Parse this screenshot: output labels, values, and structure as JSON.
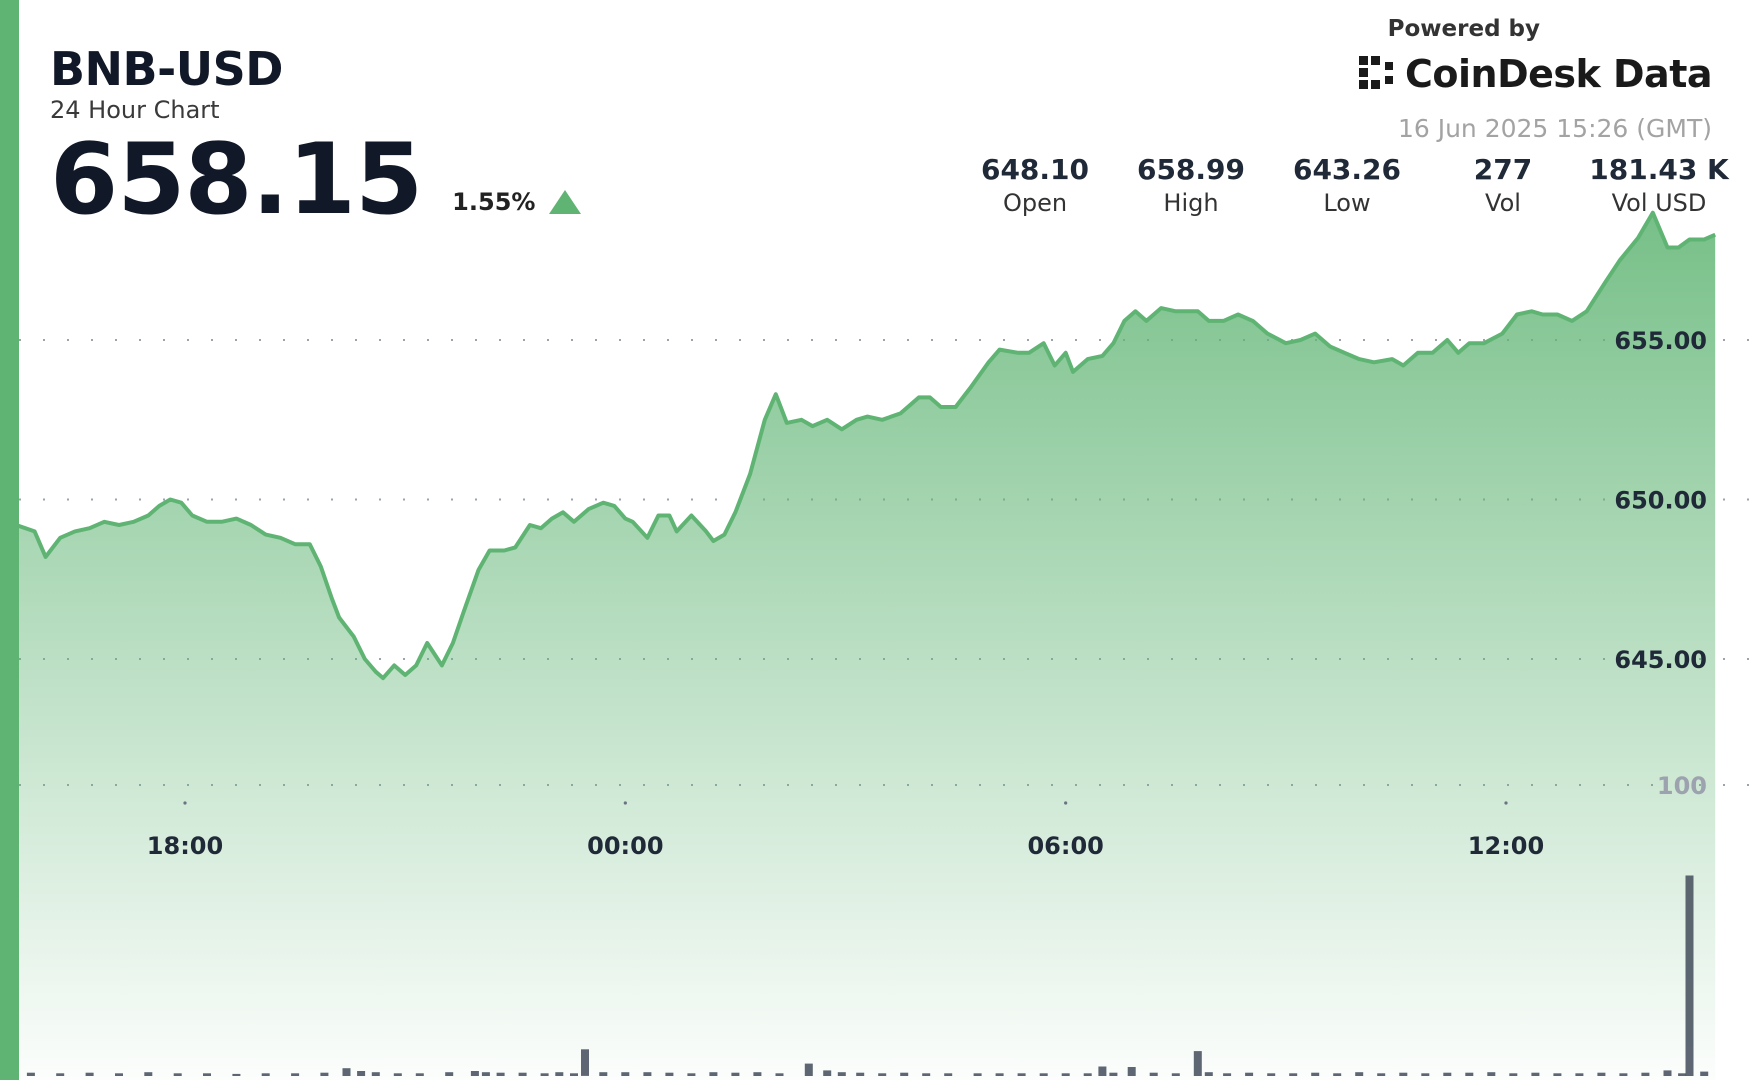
{
  "header": {
    "symbol": "BNB-USD",
    "subtitle": "24 Hour Chart",
    "price": "658.15",
    "change": "1.55%",
    "change_direction": "up"
  },
  "branding": {
    "powered_by": "Powered by",
    "name": "CoinDesk Data",
    "logo_icon": "coindesk-logo-icon"
  },
  "timestamp": "16 Jun 2025 15:26 (GMT)",
  "stats": [
    {
      "value": "648.10",
      "label": "Open"
    },
    {
      "value": "658.99",
      "label": "High"
    },
    {
      "value": "643.26",
      "label": "Low"
    },
    {
      "value": "277",
      "label": "Vol"
    },
    {
      "value": "181.43 K",
      "label": "Vol USD"
    }
  ],
  "colors": {
    "accent": "#5fb473",
    "line": "#5fb473",
    "area_top": "#5fb473",
    "volume": "#4b5563",
    "grid": "#9ca3af"
  },
  "chart_data": {
    "type": "area",
    "title": "BNB-USD",
    "ylim": [
      642.6,
      660.2
    ],
    "y_ticks": [
      645,
      650,
      655
    ],
    "y_tick_labels": [
      "645.00",
      "650.00",
      "655.00"
    ],
    "volume_tick_label": "100",
    "x_ticks": [
      18,
      24,
      30,
      36
    ],
    "x_tick_labels": [
      "18:00",
      "00:00",
      "06:00",
      "12:00"
    ],
    "grid": true,
    "series": [
      {
        "x": [
          15.7,
          15.95,
          16.1,
          16.3,
          16.5,
          16.7,
          16.9,
          17.1,
          17.3,
          17.5,
          17.65,
          17.8,
          17.95,
          18.1,
          18.3,
          18.5,
          18.7,
          18.9,
          19.1,
          19.3,
          19.5,
          19.7,
          19.85,
          20.0,
          20.1,
          20.3,
          20.45,
          20.6,
          20.7,
          20.85,
          21.0,
          21.15,
          21.3,
          21.5,
          21.65,
          21.8,
          22.0,
          22.15,
          22.35,
          22.5,
          22.7,
          22.85,
          23.0,
          23.15,
          23.3,
          23.5,
          23.7,
          23.85,
          24.0,
          24.1,
          24.3,
          24.45,
          24.6,
          24.7,
          24.9,
          25.1,
          25.2,
          25.35,
          25.5,
          25.7,
          25.9,
          26.05,
          26.2,
          26.4,
          26.55,
          26.75,
          26.95,
          27.15,
          27.3,
          27.5,
          27.75,
          28.0,
          28.15,
          28.3,
          28.5,
          28.7,
          28.95,
          29.1,
          29.35,
          29.5,
          29.7,
          29.85,
          30.0,
          30.1,
          30.3,
          30.5,
          30.65,
          30.8,
          30.95,
          31.1,
          31.3,
          31.5,
          31.65,
          31.8,
          31.95,
          32.15,
          32.35,
          32.55,
          32.75,
          33.0,
          33.2,
          33.4,
          33.6,
          33.8,
          34.0,
          34.2,
          34.45,
          34.6,
          34.8,
          35.0,
          35.2,
          35.35,
          35.5,
          35.7,
          35.95,
          36.15,
          36.35,
          36.5,
          36.7,
          36.9,
          37.1,
          37.35,
          37.55,
          37.8,
          38.0,
          38.2,
          38.35,
          38.5,
          38.7,
          38.85
        ],
        "y": [
          649.2,
          649.0,
          648.2,
          648.8,
          649.0,
          649.1,
          649.3,
          649.2,
          649.3,
          649.5,
          649.8,
          650.0,
          649.9,
          649.5,
          649.3,
          649.3,
          649.4,
          649.2,
          648.9,
          648.8,
          648.6,
          648.6,
          647.9,
          646.9,
          646.3,
          645.7,
          645.0,
          644.6,
          644.4,
          644.8,
          644.5,
          644.8,
          645.5,
          644.8,
          645.5,
          646.5,
          647.8,
          648.4,
          648.4,
          648.5,
          649.2,
          649.1,
          649.4,
          649.6,
          649.3,
          649.7,
          649.9,
          649.8,
          649.4,
          649.3,
          648.8,
          649.5,
          649.5,
          649.0,
          649.5,
          649.0,
          648.7,
          648.9,
          649.6,
          650.8,
          652.5,
          653.3,
          652.4,
          652.5,
          652.3,
          652.5,
          652.2,
          652.5,
          652.6,
          652.5,
          652.7,
          653.2,
          653.2,
          652.9,
          652.9,
          653.5,
          654.3,
          654.7,
          654.6,
          654.6,
          654.9,
          654.2,
          654.6,
          654.0,
          654.4,
          654.5,
          654.9,
          655.6,
          655.9,
          655.6,
          656.0,
          655.9,
          655.9,
          655.9,
          655.6,
          655.6,
          655.8,
          655.6,
          655.2,
          654.9,
          655.0,
          655.2,
          654.8,
          654.6,
          654.4,
          654.3,
          654.4,
          654.2,
          654.6,
          654.6,
          655.0,
          654.6,
          654.9,
          654.9,
          655.2,
          655.8,
          655.9,
          655.8,
          655.8,
          655.6,
          655.9,
          656.8,
          657.5,
          658.2,
          658.99,
          657.9,
          657.9,
          658.15,
          658.15,
          658.3
        ]
      }
    ],
    "volume": {
      "x": [
        15.9,
        16.3,
        16.7,
        17.1,
        17.5,
        17.9,
        18.3,
        18.7,
        19.1,
        19.5,
        19.9,
        20.2,
        20.4,
        20.6,
        20.9,
        21.2,
        21.6,
        21.95,
        22.1,
        22.3,
        22.6,
        22.9,
        23.1,
        23.3,
        23.45,
        23.7,
        24.0,
        24.3,
        24.6,
        24.9,
        25.2,
        25.5,
        25.8,
        26.1,
        26.5,
        26.75,
        26.95,
        27.2,
        27.5,
        27.8,
        28.1,
        28.4,
        28.8,
        29.1,
        29.4,
        29.7,
        30.0,
        30.3,
        30.5,
        30.65,
        30.9,
        31.2,
        31.5,
        31.8,
        31.95,
        32.2,
        32.5,
        32.8,
        33.1,
        33.4,
        33.7,
        34.0,
        34.3,
        34.6,
        34.9,
        35.2,
        35.5,
        35.8,
        36.1,
        36.4,
        36.7,
        37.0,
        37.3,
        37.6,
        37.9,
        38.2,
        38.4,
        38.5,
        38.7
      ],
      "y": [
        4,
        3,
        4,
        3,
        5,
        3,
        3,
        2,
        3,
        3,
        4,
        12,
        7,
        5,
        3,
        3,
        5,
        7,
        5,
        4,
        4,
        3,
        5,
        3,
        45,
        5,
        5,
        5,
        4,
        3,
        5,
        4,
        5,
        3,
        20,
        8,
        5,
        4,
        3,
        4,
        3,
        3,
        3,
        3,
        3,
        3,
        3,
        3,
        15,
        4,
        14,
        4,
        3,
        42,
        5,
        3,
        4,
        3,
        3,
        4,
        3,
        5,
        3,
        4,
        3,
        4,
        4,
        5,
        3,
        4,
        3,
        3,
        4,
        3,
        4,
        8,
        3,
        350,
        6
      ]
    }
  }
}
